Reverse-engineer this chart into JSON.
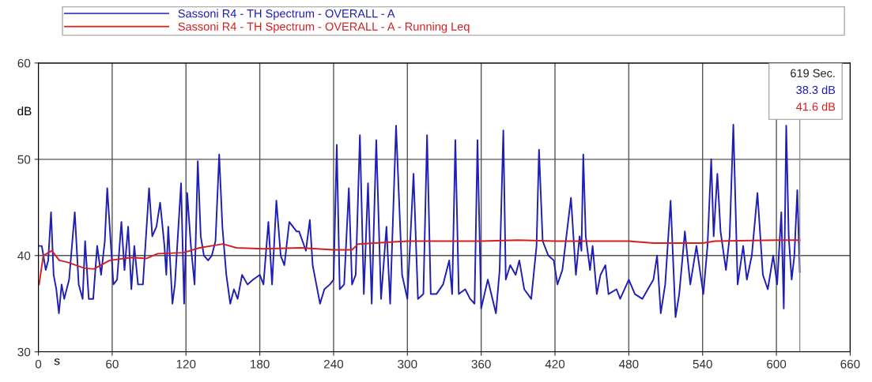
{
  "chart_data": {
    "type": "line",
    "xlabel": "s",
    "ylabel": "dB",
    "xlim": [
      0,
      660
    ],
    "xticks": [
      0,
      60,
      120,
      180,
      240,
      300,
      360,
      420,
      480,
      540,
      600,
      660
    ],
    "ylim": [
      30,
      60
    ],
    "yticks": [
      30,
      40,
      50,
      60
    ],
    "grid": true,
    "legend": "top",
    "marker": "none",
    "line_style": "solid",
    "ref_lines": [
      {
        "axis": "x",
        "value": 619,
        "color": "#909090"
      }
    ],
    "annotations": [
      "619 Sec.",
      "38.3 dB",
      "41.6 dB"
    ],
    "series": [
      {
        "name": "Sassoni R4 - TH Spectrum - OVERALL - A",
        "color": "#1f1fb4",
        "x": [
          0.6,
          2.8,
          6,
          8,
          10.3,
          12.4,
          14.6,
          16.7,
          18.9,
          21,
          25,
          29.6,
          32.8,
          36,
          38,
          41,
          44.6,
          47.8,
          51,
          54,
          56,
          61,
          64,
          67.5,
          70,
          73,
          75.6,
          78,
          81,
          85,
          90,
          92.6,
          96,
          99,
          102.5,
          104,
          105.6,
          109,
          111,
          116,
          118.5,
          121,
          124,
          127,
          129.6,
          132,
          134.6,
          138,
          141,
          144,
          147,
          149.6,
          152.8,
          156,
          159,
          162,
          165.6,
          170,
          174.6,
          180,
          183,
          187,
          190,
          193.5,
          197,
          200,
          204,
          210,
          212,
          217.5,
          220.7,
          223,
          226,
          229,
          232.5,
          237,
          240,
          242.6,
          245,
          248.6,
          252.4,
          255,
          258,
          261.4,
          264.6,
          268,
          271,
          274.7,
          278.6,
          283,
          286,
          290.8,
          295.7,
          300,
          305,
          308.6,
          313,
          316,
          319,
          323.6,
          329,
          334,
          336.4,
          339,
          341.8,
          347,
          351,
          354.6,
          357,
          360,
          365.4,
          372,
          375,
          378,
          380,
          383.6,
          388,
          391,
          395,
          400.7,
          405,
          407,
          410,
          414.6,
          419,
          422,
          426,
          433,
          437,
          440,
          441.5,
          443,
          445,
          448.5,
          450.6,
          454,
          457,
          461,
          463.5,
          470,
          473,
          480,
          485,
          491,
          500,
          503,
          506,
          509.6,
          514,
          518,
          521,
          525.6,
          530,
          535,
          540.6,
          544,
          547,
          549,
          552,
          554.6,
          559,
          562,
          565,
          568.5,
          573,
          576,
          580,
          584.6,
          589,
          593,
          597.4,
          600.6,
          604,
          606,
          608,
          610,
          612.4,
          614.6,
          617,
          619
        ],
        "values": [
          41,
          41,
          38.5,
          39.5,
          44.5,
          38,
          36.5,
          34,
          37,
          35.5,
          37.5,
          44.5,
          37,
          35.5,
          41.5,
          35.5,
          35.5,
          41,
          38,
          41.5,
          47,
          37,
          37.5,
          43.5,
          38.5,
          43,
          36.5,
          41,
          37,
          37,
          47,
          42,
          43,
          45.5,
          41,
          38,
          43,
          35,
          37,
          47.5,
          35,
          46.5,
          41,
          37,
          49.8,
          42,
          40,
          39.5,
          40,
          41.5,
          50.5,
          43,
          38,
          35,
          36.5,
          35.5,
          38,
          37,
          37.5,
          38,
          37,
          43.5,
          37,
          45.7,
          40,
          39,
          43.5,
          42.5,
          42.5,
          40.5,
          43.7,
          39,
          37,
          35,
          36.5,
          37,
          37.5,
          51.5,
          36.5,
          37,
          47,
          37,
          38,
          52.5,
          36,
          47.5,
          35,
          52,
          35.5,
          43,
          35,
          53.5,
          38,
          35.5,
          48.5,
          35.5,
          36,
          52.5,
          36,
          36,
          37,
          39.5,
          36,
          52,
          36,
          36.5,
          35.5,
          35,
          52,
          34.5,
          37.5,
          34,
          38.5,
          53,
          37.5,
          39,
          38,
          39.5,
          36.5,
          35.5,
          41,
          51,
          41.5,
          40,
          39.5,
          37,
          38.5,
          46,
          38,
          42,
          40.5,
          50.5,
          42,
          38.5,
          41,
          36,
          38,
          39,
          36,
          36.5,
          35.5,
          37.5,
          36,
          35.5,
          37.5,
          40,
          34,
          37,
          45.7,
          33.6,
          36,
          42.5,
          37,
          41,
          36,
          41,
          50,
          42,
          48.5,
          42.5,
          38.5,
          42,
          53.6,
          37,
          41,
          37.5,
          40,
          46.5,
          38,
          36.5,
          40,
          37,
          44.5,
          34.5,
          53.5,
          42,
          37.5,
          40,
          46.8,
          38.3
        ]
      },
      {
        "name": "Sassoni R4 - TH Spectrum - OVERALL - A - Running Leq",
        "color": "#d42020",
        "x": [
          0.6,
          4,
          11,
          17,
          24,
          37,
          45,
          58,
          76,
          88,
          97,
          118,
          131,
          150,
          161,
          183,
          213,
          240,
          255,
          260,
          300,
          360,
          390,
          420,
          440,
          480,
          500,
          540,
          550,
          600,
          619
        ],
        "values": [
          37,
          40,
          40.5,
          39.5,
          39.3,
          38.7,
          38.6,
          39.5,
          39.8,
          39.7,
          40.2,
          40.3,
          40.8,
          41.2,
          40.8,
          40.7,
          40.8,
          40.6,
          40.6,
          41.2,
          41.5,
          41.5,
          41.6,
          41.5,
          41.5,
          41.5,
          41.3,
          41.3,
          41.5,
          41.6,
          41.6
        ]
      }
    ]
  }
}
